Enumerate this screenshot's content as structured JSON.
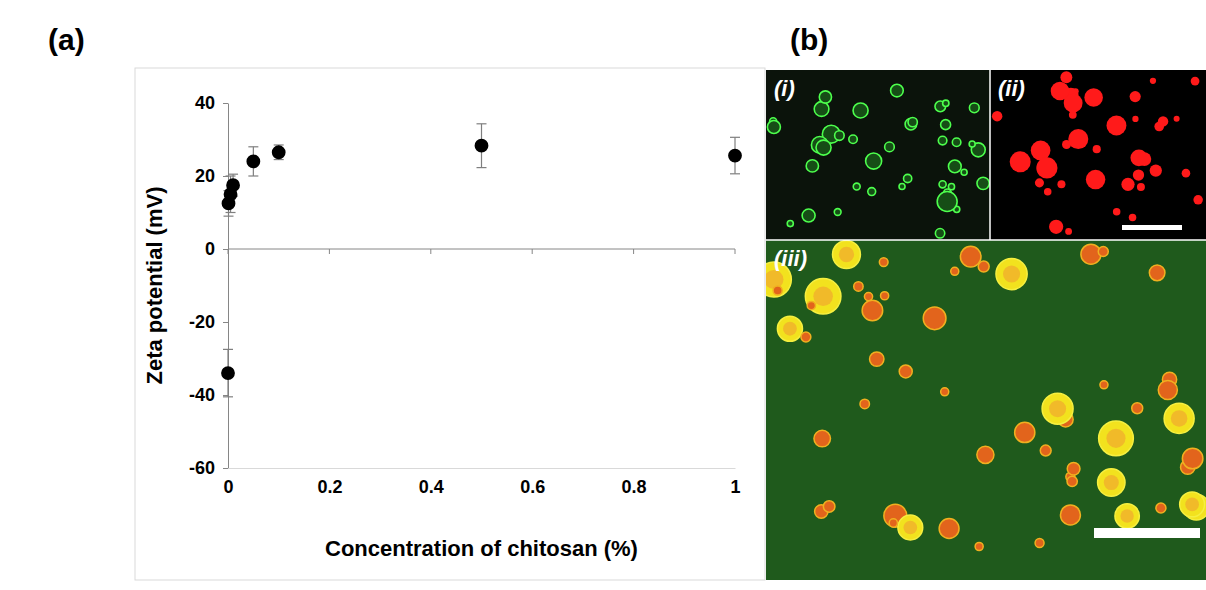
{
  "chart_data": {
    "type": "scatter",
    "x_label": "Concentration of chitosan (%)",
    "y_label": "Zeta potential (mV)",
    "x": [
      0,
      0.001,
      0.005,
      0.01,
      0.05,
      0.1,
      0.5,
      1
    ],
    "values": [
      -34,
      12.5,
      15,
      17.5,
      24,
      26.5,
      28.3,
      25.6
    ],
    "errors": [
      6.5,
      3.5,
      5,
      3,
      4,
      2,
      6,
      5
    ],
    "color": "#000000",
    "marker": "circle",
    "xlim": [
      0,
      1
    ],
    "ylim": [
      -60,
      40
    ],
    "xticks": [
      0,
      0.2,
      0.4,
      0.6,
      0.8,
      1
    ],
    "yticks": [
      -60,
      -40,
      -20,
      0,
      20,
      40
    ],
    "grid": false
  },
  "panels": [
    {
      "label": "(a)"
    },
    {
      "label": "(b)",
      "images": [
        {
          "label": "(i)"
        },
        {
          "label": "(ii)"
        },
        {
          "label": "(iii)"
        }
      ]
    }
  ]
}
